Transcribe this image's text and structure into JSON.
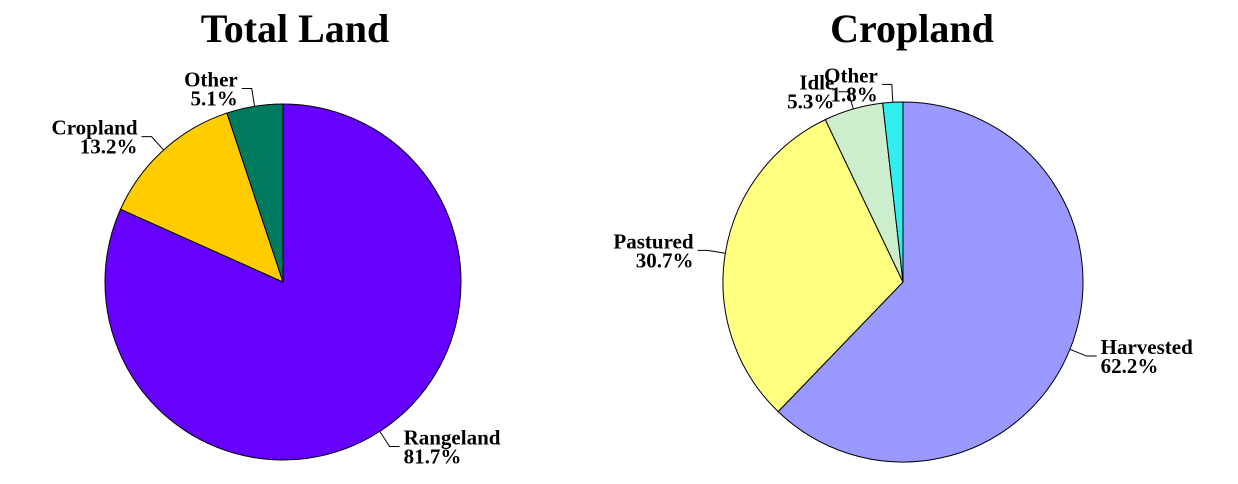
{
  "chart_data": [
    {
      "type": "pie",
      "title": "Total Land",
      "categories": [
        "Rangeland",
        "Cropland",
        "Other"
      ],
      "values": [
        81.7,
        13.2,
        5.1
      ],
      "value_labels": [
        "81.7%",
        "13.2%",
        "5.1%"
      ],
      "colors": [
        "#6600ff",
        "#ffcc00",
        "#007a5e"
      ]
    },
    {
      "type": "pie",
      "title": "Cropland",
      "categories": [
        "Harvested",
        "Pastured",
        "Idle",
        "Other"
      ],
      "values": [
        62.2,
        30.7,
        5.3,
        1.8
      ],
      "value_labels": [
        "62.2%",
        "30.7%",
        "5.3%",
        "1.8%"
      ],
      "colors": [
        "#9999ff",
        "#ffff80",
        "#cceecc",
        "#33eeee"
      ]
    }
  ]
}
